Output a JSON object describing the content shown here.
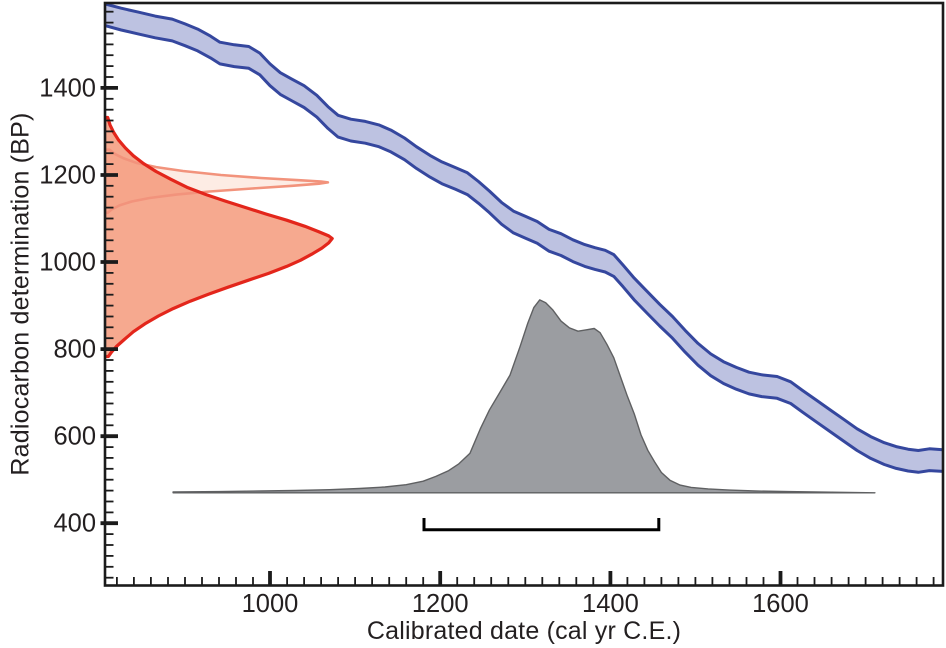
{
  "figure": {
    "description": "Radiocarbon calibration plot with calibration curve band, radiocarbon determination likelihoods on the BP axis, and calibrated probability distribution on the calendar axis"
  },
  "chart_data": {
    "type": "line",
    "title": "",
    "xlabel": "Calibrated date (cal yr C.E.)",
    "ylabel": "Radiocarbon determination (BP)",
    "xlim": [
      806,
      1791
    ],
    "ylim": [
      257,
      1595
    ],
    "x_major_ticks": [
      1000,
      1200,
      1400,
      1600
    ],
    "x_minor_step": 20,
    "y_major_ticks": [
      400,
      600,
      800,
      1000,
      1200,
      1400
    ],
    "y_minor_step": 25,
    "grid": false,
    "legend": "none",
    "colors": {
      "frame": "#1b1b1b",
      "tick_label": "#231f20",
      "curve_stroke": "#35479e",
      "curve_fill": "#bdc2e1",
      "light_likelihood_stroke": "#f2937c",
      "light_likelihood_fill": "#fdece4",
      "red_likelihood_stroke": "#e3261b",
      "red_likelihood_fill": "rgba(244,148,115,0.8)",
      "posterior_stroke": "#5f6062",
      "posterior_fill": "#9b9da1",
      "bracket": "#000000"
    },
    "series": [
      {
        "name": "calibration-curve-band",
        "kind": "band",
        "half_width_bp": 25,
        "points": [
          [
            806,
            1568
          ],
          [
            825,
            1558
          ],
          [
            845,
            1549
          ],
          [
            865,
            1540
          ],
          [
            885,
            1533
          ],
          [
            900,
            1522
          ],
          [
            915,
            1510
          ],
          [
            930,
            1494
          ],
          [
            941,
            1480
          ],
          [
            958,
            1474
          ],
          [
            975,
            1470
          ],
          [
            988,
            1455
          ],
          [
            1000,
            1430
          ],
          [
            1012,
            1410
          ],
          [
            1025,
            1396
          ],
          [
            1040,
            1380
          ],
          [
            1055,
            1358
          ],
          [
            1068,
            1332
          ],
          [
            1080,
            1312
          ],
          [
            1095,
            1303
          ],
          [
            1112,
            1298
          ],
          [
            1128,
            1290
          ],
          [
            1142,
            1278
          ],
          [
            1158,
            1260
          ],
          [
            1172,
            1240
          ],
          [
            1188,
            1220
          ],
          [
            1202,
            1205
          ],
          [
            1218,
            1192
          ],
          [
            1232,
            1180
          ],
          [
            1245,
            1160
          ],
          [
            1258,
            1138
          ],
          [
            1272,
            1112
          ],
          [
            1286,
            1092
          ],
          [
            1300,
            1080
          ],
          [
            1314,
            1068
          ],
          [
            1328,
            1050
          ],
          [
            1342,
            1040
          ],
          [
            1356,
            1026
          ],
          [
            1370,
            1015
          ],
          [
            1382,
            1008
          ],
          [
            1394,
            1002
          ],
          [
            1404,
            992
          ],
          [
            1415,
            968
          ],
          [
            1428,
            938
          ],
          [
            1443,
            908
          ],
          [
            1458,
            878
          ],
          [
            1473,
            850
          ],
          [
            1488,
            818
          ],
          [
            1503,
            788
          ],
          [
            1518,
            764
          ],
          [
            1533,
            746
          ],
          [
            1548,
            733
          ],
          [
            1563,
            722
          ],
          [
            1578,
            716
          ],
          [
            1596,
            712
          ],
          [
            1612,
            700
          ],
          [
            1626,
            680
          ],
          [
            1642,
            658
          ],
          [
            1658,
            636
          ],
          [
            1674,
            614
          ],
          [
            1690,
            592
          ],
          [
            1706,
            574
          ],
          [
            1722,
            560
          ],
          [
            1736,
            551
          ],
          [
            1750,
            545
          ],
          [
            1762,
            542
          ],
          [
            1775,
            546
          ],
          [
            1791,
            544
          ]
        ]
      },
      {
        "name": "radiocarbon-likelihood-light",
        "kind": "vertical_distribution",
        "mode_bp": 1183,
        "peak_cal": 1068,
        "points": [
          [
            1258,
            0.02
          ],
          [
            1248,
            0.045
          ],
          [
            1238,
            0.085
          ],
          [
            1228,
            0.14
          ],
          [
            1218,
            0.23
          ],
          [
            1209,
            0.35
          ],
          [
            1200,
            0.52
          ],
          [
            1193,
            0.7
          ],
          [
            1188,
            0.87
          ],
          [
            1185,
            0.97
          ],
          [
            1183,
            1.0
          ],
          [
            1180,
            0.96
          ],
          [
            1175,
            0.84
          ],
          [
            1169,
            0.66
          ],
          [
            1162,
            0.47
          ],
          [
            1155,
            0.32
          ],
          [
            1147,
            0.2
          ],
          [
            1139,
            0.12
          ],
          [
            1130,
            0.065
          ],
          [
            1121,
            0.03
          ],
          [
            1113,
            0.012
          ]
        ]
      },
      {
        "name": "radiocarbon-likelihood-red",
        "kind": "vertical_distribution",
        "mode_bp": 1054,
        "peak_cal": 1073,
        "points": [
          [
            1332,
            0.012
          ],
          [
            1315,
            0.022
          ],
          [
            1298,
            0.038
          ],
          [
            1280,
            0.06
          ],
          [
            1262,
            0.09
          ],
          [
            1244,
            0.125
          ],
          [
            1226,
            0.17
          ],
          [
            1208,
            0.225
          ],
          [
            1190,
            0.29
          ],
          [
            1172,
            0.36
          ],
          [
            1155,
            0.445
          ],
          [
            1140,
            0.53
          ],
          [
            1125,
            0.62
          ],
          [
            1110,
            0.71
          ],
          [
            1096,
            0.8
          ],
          [
            1082,
            0.88
          ],
          [
            1070,
            0.94
          ],
          [
            1060,
            0.985
          ],
          [
            1054,
            1.0
          ],
          [
            1044,
            0.985
          ],
          [
            1032,
            0.955
          ],
          [
            1018,
            0.91
          ],
          [
            1004,
            0.86
          ],
          [
            990,
            0.8
          ],
          [
            974,
            0.72
          ],
          [
            958,
            0.63
          ],
          [
            942,
            0.54
          ],
          [
            926,
            0.455
          ],
          [
            910,
            0.375
          ],
          [
            893,
            0.3
          ],
          [
            876,
            0.235
          ],
          [
            858,
            0.175
          ],
          [
            840,
            0.125
          ],
          [
            822,
            0.085
          ],
          [
            806,
            0.05
          ],
          [
            793,
            0.028
          ],
          [
            783,
            0.015
          ]
        ]
      },
      {
        "name": "calibrated-distribution",
        "kind": "horizontal_distribution",
        "baseline_bp": 470,
        "amplitude_bp": 443,
        "points": [
          [
            886,
            0.004
          ],
          [
            940,
            0.006
          ],
          [
            990,
            0.009
          ],
          [
            1030,
            0.012
          ],
          [
            1070,
            0.016
          ],
          [
            1105,
            0.022
          ],
          [
            1135,
            0.03
          ],
          [
            1160,
            0.042
          ],
          [
            1180,
            0.06
          ],
          [
            1195,
            0.085
          ],
          [
            1210,
            0.115
          ],
          [
            1222,
            0.15
          ],
          [
            1235,
            0.205
          ],
          [
            1247,
            0.33
          ],
          [
            1258,
            0.43
          ],
          [
            1270,
            0.52
          ],
          [
            1282,
            0.61
          ],
          [
            1294,
            0.76
          ],
          [
            1303,
            0.88
          ],
          [
            1310,
            0.96
          ],
          [
            1317,
            1.0
          ],
          [
            1324,
            0.985
          ],
          [
            1332,
            0.95
          ],
          [
            1342,
            0.89
          ],
          [
            1352,
            0.855
          ],
          [
            1362,
            0.838
          ],
          [
            1372,
            0.845
          ],
          [
            1381,
            0.852
          ],
          [
            1388,
            0.83
          ],
          [
            1396,
            0.77
          ],
          [
            1404,
            0.7
          ],
          [
            1412,
            0.6
          ],
          [
            1420,
            0.5
          ],
          [
            1428,
            0.41
          ],
          [
            1436,
            0.3
          ],
          [
            1444,
            0.22
          ],
          [
            1452,
            0.16
          ],
          [
            1460,
            0.105
          ],
          [
            1470,
            0.065
          ],
          [
            1482,
            0.04
          ],
          [
            1495,
            0.028
          ],
          [
            1515,
            0.02
          ],
          [
            1540,
            0.014
          ],
          [
            1570,
            0.009
          ],
          [
            1610,
            0.006
          ],
          [
            1660,
            0.003
          ],
          [
            1711,
            0.0
          ]
        ]
      },
      {
        "name": "range-bracket",
        "kind": "bracket",
        "cal_from": 1181,
        "cal_to": 1457,
        "bp": 385,
        "cap_bp": 412
      }
    ]
  }
}
